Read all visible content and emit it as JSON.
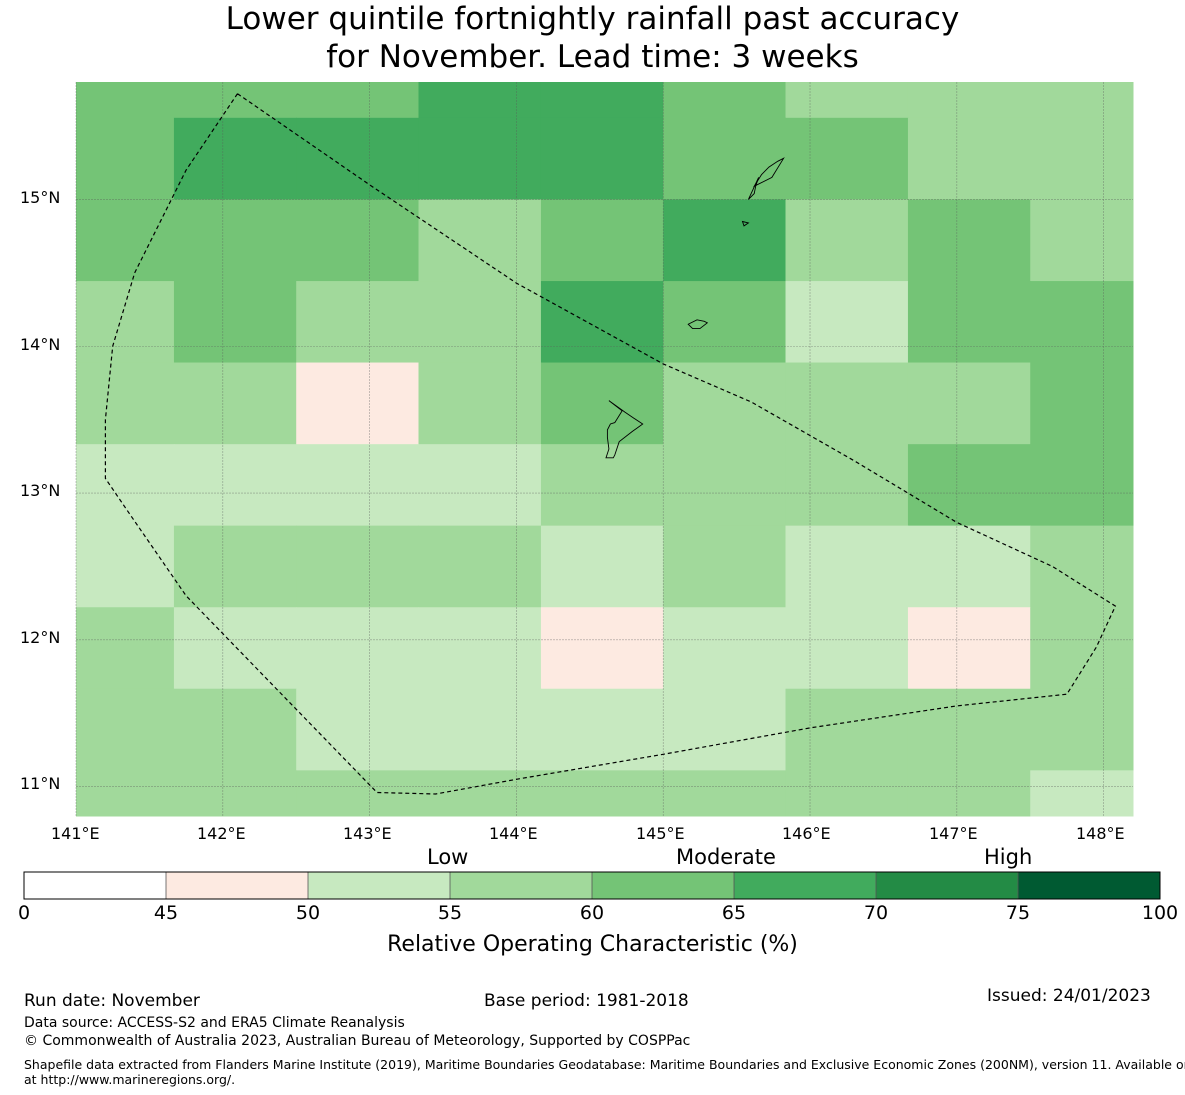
{
  "title": {
    "line1": "Lower quintile fortnightly rainfall past accuracy",
    "line2": "for November. Lead time: 3 weeks"
  },
  "map": {
    "lon_range": [
      141.0,
      148.2
    ],
    "lat_range": [
      10.8,
      15.8
    ],
    "lon_ticks": [
      "141°E",
      "142°E",
      "143°E",
      "144°E",
      "145°E",
      "146°E",
      "147°E",
      "148°E"
    ],
    "lat_ticks": [
      "15°N",
      "14°N",
      "13°N",
      "12°N",
      "11°N"
    ],
    "grid_cells_roc_percent": {
      "lon_edges": [
        141.0,
        141.667,
        142.5,
        143.333,
        144.167,
        145.0,
        145.833,
        146.667,
        147.5,
        148.2
      ],
      "lat_edges": [
        15.8,
        15.556,
        15.0,
        14.444,
        13.889,
        13.333,
        12.778,
        12.222,
        11.667,
        11.111,
        10.8
      ],
      "rows": [
        [
          62,
          62,
          62,
          67,
          67,
          62,
          57,
          57,
          57
        ],
        [
          62,
          67,
          67,
          67,
          67,
          62,
          62,
          57,
          57
        ],
        [
          62,
          62,
          62,
          57,
          62,
          67,
          57,
          62,
          57
        ],
        [
          57,
          62,
          57,
          57,
          67,
          62,
          52,
          62,
          62
        ],
        [
          57,
          57,
          47,
          57,
          62,
          57,
          57,
          57,
          62
        ],
        [
          52,
          52,
          52,
          52,
          57,
          57,
          57,
          62,
          62
        ],
        [
          52,
          57,
          57,
          57,
          52,
          57,
          52,
          52,
          57
        ],
        [
          57,
          52,
          52,
          52,
          47,
          52,
          52,
          47,
          57
        ],
        [
          57,
          57,
          52,
          52,
          52,
          52,
          57,
          57,
          57
        ],
        [
          57,
          57,
          57,
          57,
          57,
          57,
          57,
          57,
          52
        ]
      ]
    },
    "boundary_lonlat": [
      [
        142.1,
        15.72
      ],
      [
        143.0,
        15.1
      ],
      [
        144.0,
        14.43
      ],
      [
        145.0,
        13.88
      ],
      [
        145.6,
        13.62
      ],
      [
        146.3,
        13.22
      ],
      [
        147.0,
        12.8
      ],
      [
        147.65,
        12.5
      ],
      [
        148.08,
        12.23
      ],
      [
        147.95,
        11.95
      ],
      [
        147.75,
        11.63
      ],
      [
        147.0,
        11.55
      ],
      [
        146.0,
        11.4
      ],
      [
        145.0,
        11.22
      ],
      [
        144.0,
        11.05
      ],
      [
        143.45,
        10.95
      ],
      [
        143.05,
        10.96
      ],
      [
        141.75,
        12.3
      ],
      [
        141.35,
        12.88
      ],
      [
        141.2,
        13.1
      ],
      [
        141.2,
        13.5
      ],
      [
        141.25,
        14.0
      ],
      [
        141.4,
        14.5
      ],
      [
        141.75,
        15.2
      ],
      [
        142.1,
        15.72
      ]
    ],
    "islands_lonlat": [
      [
        [
          144.63,
          13.63
        ],
        [
          144.74,
          13.55
        ],
        [
          144.8,
          13.51
        ],
        [
          144.86,
          13.47
        ],
        [
          144.79,
          13.42
        ],
        [
          144.7,
          13.35
        ],
        [
          144.67,
          13.26
        ],
        [
          144.66,
          13.24
        ],
        [
          144.61,
          13.24
        ],
        [
          144.63,
          13.3
        ],
        [
          144.62,
          13.38
        ],
        [
          144.62,
          13.43
        ],
        [
          144.64,
          13.47
        ],
        [
          144.67,
          13.48
        ],
        [
          144.72,
          13.56
        ],
        [
          144.63,
          13.63
        ]
      ],
      [
        [
          145.2,
          14.12
        ],
        [
          145.17,
          14.15
        ],
        [
          145.23,
          14.18
        ],
        [
          145.28,
          14.17
        ],
        [
          145.3,
          14.16
        ],
        [
          145.25,
          14.12
        ],
        [
          145.2,
          14.12
        ]
      ],
      [
        [
          145.58,
          15.0
        ],
        [
          145.65,
          15.15
        ],
        [
          145.63,
          15.09
        ],
        [
          145.62,
          15.04
        ],
        [
          145.58,
          15.0
        ]
      ],
      [
        [
          145.67,
          15.17
        ],
        [
          145.62,
          15.09
        ],
        [
          145.74,
          15.15
        ],
        [
          145.82,
          15.28
        ],
        [
          145.78,
          15.26
        ],
        [
          145.72,
          15.22
        ],
        [
          145.67,
          15.17
        ]
      ],
      [
        [
          145.54,
          14.85
        ],
        [
          145.58,
          14.84
        ],
        [
          145.55,
          14.82
        ],
        [
          145.54,
          14.85
        ]
      ]
    ]
  },
  "colorbar": {
    "levels": [
      "Low",
      "Moderate",
      "High"
    ],
    "ticks": [
      "0",
      "45",
      "50",
      "55",
      "60",
      "65",
      "70",
      "75",
      "100"
    ],
    "bins": [
      {
        "min": 0,
        "max": 45,
        "color": "#ffffff"
      },
      {
        "min": 45,
        "max": 50,
        "color": "#fdeae1"
      },
      {
        "min": 50,
        "max": 55,
        "color": "#c7e9c0"
      },
      {
        "min": 55,
        "max": 60,
        "color": "#a1d99b"
      },
      {
        "min": 60,
        "max": 65,
        "color": "#74c476"
      },
      {
        "min": 65,
        "max": 70,
        "color": "#41ab5d"
      },
      {
        "min": 70,
        "max": 75,
        "color": "#238b45"
      },
      {
        "min": 75,
        "max": 100,
        "color": "#005a32"
      }
    ],
    "label": "Relative Operating Characteristic (%)"
  },
  "footer": {
    "run_date": "Run date: November",
    "base_period": "Base period: 1981-2018",
    "issued": "Issued: 24/01/2023",
    "data_source": "Data source: ACCESS-S2 and ERA5 Climate Reanalysis",
    "copyright": "© Commonwealth of Australia 2023, Australian Bureau of Meteorology, Supported by COSPPac",
    "shapefile_line1": "Shapefile data extracted from Flanders Marine Institute (2019), Maritime Boundaries Geodatabase: Maritime Boundaries and Exclusive Economic Zones (200NM), version 11. Available online",
    "shapefile_line2": "at http://www.marineregions.org/."
  }
}
